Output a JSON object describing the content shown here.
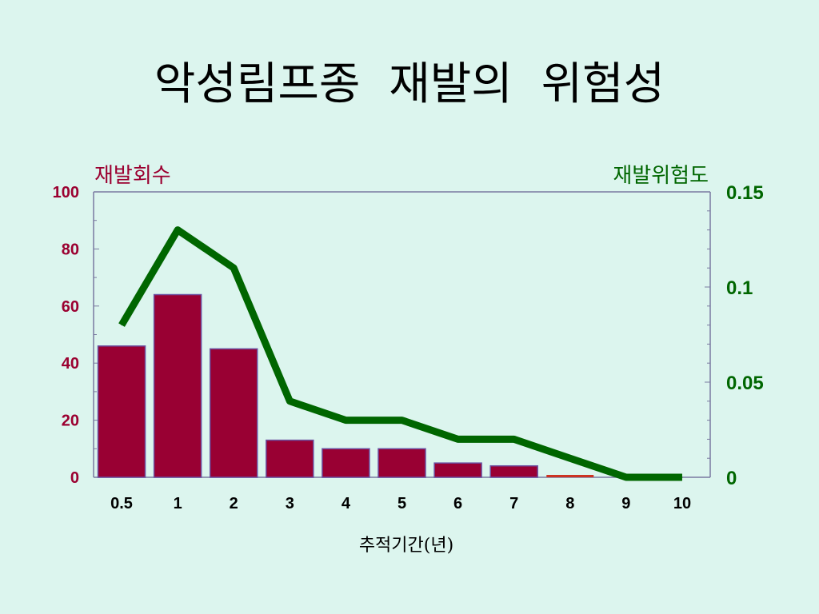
{
  "slide": {
    "title": "악성림프종 재발의 위험성"
  },
  "chart_data": {
    "type": "bar+line",
    "title": "악성림프종 재발의 위험성",
    "xlabel": "추적기간(년)",
    "categories": [
      "0.5",
      "1",
      "2",
      "3",
      "4",
      "5",
      "6",
      "7",
      "8",
      "9",
      "10"
    ],
    "series": [
      {
        "name": "재발회수",
        "type": "bar",
        "axis": "left",
        "values": [
          46,
          64,
          45,
          13,
          10,
          10,
          5,
          4,
          1,
          0,
          0
        ]
      },
      {
        "name": "재발위험도",
        "type": "line",
        "axis": "right",
        "values": [
          0.08,
          0.13,
          0.11,
          0.04,
          0.03,
          0.03,
          0.02,
          0.02,
          0.01,
          0,
          0
        ]
      }
    ],
    "ylabel_left": "재발회수",
    "ylabel_right": "재발위험도",
    "ylim_left": [
      0,
      100
    ],
    "ylim_right": [
      0,
      0.15
    ],
    "yticks_left": [
      "0",
      "20",
      "40",
      "60",
      "80",
      "100"
    ],
    "yticks_right": [
      "0",
      "0.05",
      "0.1",
      "0.15"
    ],
    "grid": false,
    "colors": {
      "bar_fill": "#990033",
      "bar_stroke": "#6b4fa0",
      "bar_highlight": "#cc3322",
      "line": "#006600",
      "left_axis_text": "#9b0030",
      "right_axis_text": "#006600",
      "axis_line": "#7a7aa0"
    }
  }
}
